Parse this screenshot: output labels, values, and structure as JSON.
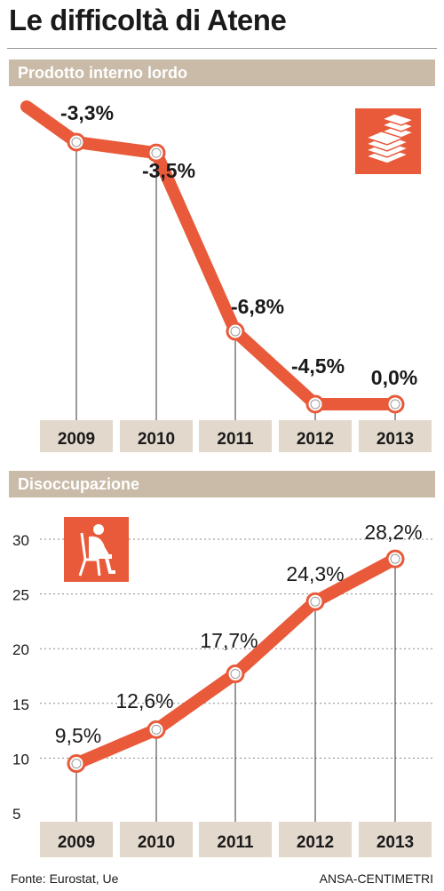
{
  "title": "Le difficoltà di Atene",
  "colors": {
    "line": "#e85a3a",
    "band": "#e3d8cc",
    "header": "#c9bba8",
    "icon_bg": "#e85a3a"
  },
  "icons": {
    "gdp": "money-stack-icon",
    "unemployment": "seated-person-icon"
  },
  "chart_data": [
    {
      "type": "line",
      "title": "Prodotto interno lordo",
      "categories": [
        "2009",
        "2010",
        "2011",
        "2012",
        "2013"
      ],
      "values": [
        -3.3,
        -3.5,
        -6.8,
        -4.5,
        0.0
      ],
      "labels": [
        "-3,3%",
        "-3,5%",
        "-6,8%",
        "-4,5%",
        "0,0%"
      ],
      "note": ""
    },
    {
      "type": "line",
      "title": "Disoccupazione",
      "categories": [
        "2009",
        "2010",
        "2011",
        "2012",
        "2013"
      ],
      "values": [
        9.5,
        12.6,
        17.7,
        24.3,
        28.2
      ],
      "labels": [
        "9,5%",
        "12,6%",
        "17,7%",
        "24,3%",
        "28,2%"
      ],
      "ylim": [
        5,
        30
      ],
      "yticks": [
        "5",
        "10",
        "15",
        "20",
        "25",
        "30"
      ],
      "grid": true
    }
  ],
  "footer": {
    "source": "Fonte: Eurostat, Ue",
    "credit": "ANSA-CENTIMETRI"
  }
}
